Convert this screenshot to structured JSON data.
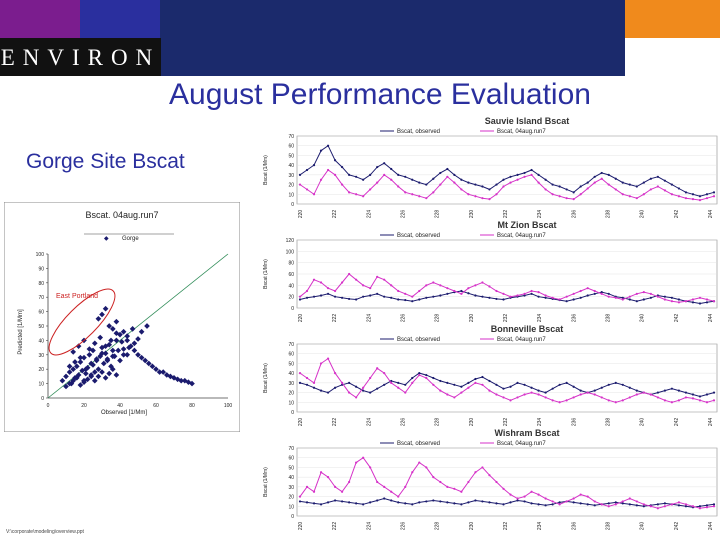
{
  "slide": {
    "logo": "ENVIRON",
    "title": "August Performance Evaluation",
    "subtitle": "Gorge Site Bscat",
    "footer": "V:\\corporate\\modeling\\overview.ppt"
  },
  "colors": {
    "purple": "#7b1d8e",
    "navy": "#2a2f9e",
    "dark_navy": "#1b2a6c",
    "orange": "#f08a1c",
    "observed": "#1b1b6e",
    "predicted": "#d632c8",
    "one_to_one": "#2e8b57",
    "highlight": "#cc2222"
  },
  "chart_data": [
    {
      "type": "scatter",
      "title": "Bscat. 04aug.run7",
      "legend": [
        "Gorge"
      ],
      "xlabel": "Observed  [1/Mm]",
      "ylabel": "Predicted  [1/Mm]",
      "xlim": [
        0,
        100
      ],
      "ylim": [
        0,
        100
      ],
      "xticks": [
        "0",
        "20",
        "40",
        "60",
        "80",
        "100"
      ],
      "yticks": [
        "0",
        "10",
        "20",
        "30",
        "40",
        "50",
        "60",
        "70",
        "80",
        "90",
        "100"
      ],
      "annotation": "East Portland",
      "one_to_one_line": true,
      "x": [
        8,
        10,
        12,
        13,
        14,
        15,
        16,
        17,
        18,
        19,
        20,
        20,
        21,
        22,
        23,
        24,
        25,
        25,
        26,
        27,
        28,
        29,
        30,
        31,
        32,
        33,
        34,
        35,
        36,
        37,
        38,
        40,
        42,
        44,
        10,
        12,
        14,
        16,
        18,
        20,
        22,
        24,
        26,
        28,
        30,
        32,
        34,
        36,
        38,
        12,
        15,
        18,
        21,
        24,
        27,
        30,
        33,
        36,
        39,
        42,
        45,
        48,
        14,
        17,
        20,
        23,
        26,
        29,
        32,
        35,
        38,
        41,
        44,
        47,
        50,
        52,
        55,
        28,
        30,
        32,
        34,
        36,
        38,
        40,
        42,
        44,
        46,
        48,
        50,
        52,
        54,
        56,
        58,
        60,
        62,
        64,
        66,
        68,
        70,
        72,
        74,
        76,
        78,
        80
      ],
      "y": [
        12,
        15,
        18,
        10,
        20,
        14,
        22,
        16,
        25,
        19,
        12,
        28,
        17,
        21,
        30,
        15,
        23,
        33,
        18,
        26,
        20,
        29,
        35,
        24,
        31,
        27,
        37,
        22,
        33,
        29,
        40,
        26,
        34,
        30,
        8,
        10,
        12,
        14,
        9,
        11,
        13,
        16,
        12,
        15,
        18,
        14,
        17,
        20,
        16,
        22,
        25,
        28,
        20,
        24,
        27,
        31,
        26,
        29,
        33,
        30,
        35,
        38,
        32,
        36,
        40,
        34,
        38,
        42,
        36,
        40,
        45,
        39,
        43,
        48,
        41,
        46,
        50,
        55,
        58,
        62,
        50,
        48,
        53,
        44,
        46,
        40,
        36,
        33,
        30,
        28,
        26,
        24,
        22,
        20,
        18,
        18,
        16,
        15,
        14,
        13,
        12,
        12,
        11,
        10
      ],
      "x_approx_note": ""
    },
    {
      "type": "line",
      "title": "Sauvie Island Bscat",
      "legend": [
        "Bscat, observed",
        "Bscat, 04aug.run7"
      ],
      "ylabel": "Bscat (1/Mm)",
      "ylim": [
        0,
        70
      ],
      "yticks": [
        "0",
        "10",
        "20",
        "30",
        "40",
        "50",
        "60",
        "70"
      ],
      "xticks": [
        "220",
        "222",
        "224",
        "226",
        "228",
        "230",
        "232",
        "234",
        "236",
        "238",
        "240",
        "242",
        "244"
      ],
      "series": [
        {
          "name": "Bscat, observed",
          "values": [
            30,
            35,
            40,
            55,
            60,
            45,
            38,
            30,
            28,
            25,
            30,
            38,
            42,
            36,
            30,
            28,
            25,
            22,
            20,
            26,
            32,
            36,
            30,
            25,
            22,
            20,
            18,
            15,
            20,
            25,
            28,
            30,
            32,
            35,
            30,
            25,
            20,
            18,
            15,
            12,
            18,
            22,
            28,
            32,
            30,
            26,
            22,
            20,
            18,
            22,
            26,
            28,
            24,
            20,
            16,
            12,
            10,
            8,
            10,
            12
          ]
        },
        {
          "name": "Bscat, 04aug.run7",
          "values": [
            20,
            15,
            10,
            25,
            35,
            30,
            20,
            12,
            10,
            8,
            15,
            22,
            30,
            25,
            18,
            12,
            10,
            8,
            6,
            12,
            20,
            28,
            22,
            15,
            10,
            8,
            6,
            5,
            10,
            18,
            22,
            25,
            28,
            30,
            22,
            15,
            10,
            8,
            6,
            5,
            10,
            16,
            22,
            26,
            20,
            15,
            10,
            8,
            6,
            10,
            15,
            18,
            14,
            10,
            8,
            6,
            5,
            4,
            6,
            8
          ]
        }
      ]
    },
    {
      "type": "line",
      "title": "Mt Zion Bscat",
      "legend": [
        "Bscat, observed",
        "Bscat, 04aug.run7"
      ],
      "ylabel": "Bscat (1/Mm)",
      "ylim": [
        0,
        120
      ],
      "yticks": [
        "0",
        "20",
        "40",
        "60",
        "80",
        "100",
        "120"
      ],
      "xticks": [
        "220",
        "222",
        "224",
        "226",
        "228",
        "230",
        "232",
        "234",
        "236",
        "238",
        "240",
        "242",
        "244"
      ],
      "series": [
        {
          "name": "Bscat, observed",
          "values": [
            15,
            18,
            20,
            22,
            25,
            20,
            18,
            16,
            15,
            20,
            22,
            25,
            20,
            18,
            15,
            14,
            12,
            15,
            18,
            20,
            22,
            25,
            28,
            30,
            26,
            22,
            20,
            18,
            16,
            15,
            18,
            20,
            22,
            25,
            20,
            18,
            16,
            14,
            12,
            15,
            18,
            22,
            25,
            28,
            25,
            20,
            18,
            15,
            12,
            15,
            18,
            22,
            20,
            18,
            15,
            12,
            10,
            8,
            10,
            12
          ]
        },
        {
          "name": "Bscat, 04aug.run7",
          "values": [
            20,
            30,
            50,
            45,
            35,
            30,
            45,
            60,
            50,
            40,
            35,
            55,
            50,
            40,
            30,
            25,
            20,
            30,
            40,
            45,
            40,
            35,
            30,
            25,
            35,
            40,
            45,
            38,
            30,
            25,
            20,
            22,
            25,
            30,
            28,
            22,
            18,
            15,
            20,
            25,
            30,
            35,
            30,
            25,
            20,
            18,
            15,
            20,
            25,
            28,
            25,
            20,
            15,
            12,
            10,
            12,
            15,
            18,
            15,
            12
          ]
        }
      ]
    },
    {
      "type": "line",
      "title": "Bonneville Bscat",
      "legend": [
        "Bscat, observed",
        "Bscat, 04aug.run7"
      ],
      "ylabel": "Bscat (1/Mm)",
      "ylim": [
        0,
        70
      ],
      "yticks": [
        "0",
        "10",
        "20",
        "30",
        "40",
        "50",
        "60",
        "70"
      ],
      "xticks": [
        "220",
        "222",
        "224",
        "226",
        "228",
        "230",
        "232",
        "234",
        "236",
        "238",
        "240",
        "242",
        "244"
      ],
      "series": [
        {
          "name": "Bscat, observed",
          "values": [
            30,
            28,
            25,
            22,
            20,
            25,
            28,
            30,
            26,
            22,
            20,
            24,
            28,
            32,
            30,
            28,
            35,
            40,
            38,
            35,
            32,
            30,
            28,
            26,
            30,
            34,
            36,
            32,
            28,
            24,
            26,
            30,
            28,
            25,
            22,
            20,
            24,
            28,
            30,
            26,
            22,
            20,
            22,
            25,
            28,
            30,
            28,
            25,
            22,
            20,
            18,
            20,
            22,
            24,
            22,
            20,
            18,
            16,
            18,
            20
          ]
        },
        {
          "name": "Bscat, 04aug.run7",
          "values": [
            40,
            35,
            30,
            50,
            55,
            40,
            30,
            20,
            15,
            25,
            35,
            45,
            40,
            30,
            25,
            20,
            30,
            38,
            35,
            28,
            22,
            18,
            15,
            20,
            25,
            30,
            28,
            22,
            18,
            15,
            12,
            15,
            18,
            20,
            18,
            15,
            12,
            10,
            12,
            15,
            18,
            20,
            18,
            15,
            12,
            10,
            12,
            15,
            18,
            20,
            18,
            15,
            12,
            10,
            12,
            15,
            14,
            12,
            10,
            12
          ]
        }
      ]
    },
    {
      "type": "line",
      "title": "Wishram Bscat",
      "legend": [
        "Bscat, observed",
        "Bscat, 04aug.run7"
      ],
      "ylabel": "Bscat (1/Mm)",
      "ylim": [
        0,
        70
      ],
      "yticks": [
        "0",
        "10",
        "20",
        "30",
        "40",
        "50",
        "60",
        "70"
      ],
      "xticks": [
        "220",
        "222",
        "224",
        "226",
        "228",
        "230",
        "232",
        "234",
        "236",
        "238",
        "240",
        "242",
        "244"
      ],
      "series": [
        {
          "name": "Bscat, observed",
          "values": [
            15,
            14,
            13,
            12,
            14,
            16,
            15,
            14,
            13,
            12,
            14,
            16,
            18,
            16,
            14,
            13,
            12,
            14,
            15,
            16,
            15,
            14,
            13,
            12,
            14,
            16,
            15,
            14,
            13,
            12,
            14,
            16,
            15,
            13,
            12,
            11,
            12,
            14,
            15,
            14,
            13,
            12,
            11,
            12,
            13,
            14,
            13,
            12,
            11,
            10,
            11,
            12,
            13,
            12,
            11,
            10,
            9,
            10,
            11,
            12
          ]
        },
        {
          "name": "Bscat, 04aug.run7",
          "values": [
            20,
            30,
            25,
            45,
            40,
            30,
            25,
            35,
            55,
            60,
            50,
            35,
            30,
            25,
            20,
            30,
            45,
            55,
            50,
            40,
            35,
            30,
            28,
            25,
            35,
            45,
            50,
            42,
            35,
            28,
            22,
            18,
            20,
            25,
            22,
            18,
            15,
            12,
            15,
            18,
            22,
            20,
            15,
            12,
            10,
            12,
            15,
            18,
            15,
            12,
            10,
            8,
            10,
            12,
            14,
            12,
            10,
            8,
            9,
            10
          ]
        }
      ]
    }
  ]
}
